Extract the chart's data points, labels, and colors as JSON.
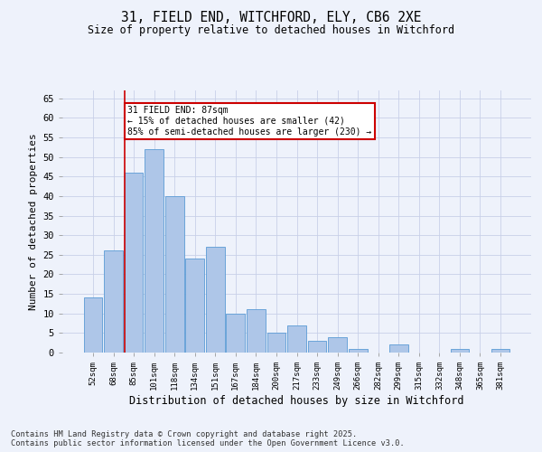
{
  "title1": "31, FIELD END, WITCHFORD, ELY, CB6 2XE",
  "title2": "Size of property relative to detached houses in Witchford",
  "xlabel": "Distribution of detached houses by size in Witchford",
  "ylabel": "Number of detached properties",
  "categories": [
    "52sqm",
    "68sqm",
    "85sqm",
    "101sqm",
    "118sqm",
    "134sqm",
    "151sqm",
    "167sqm",
    "184sqm",
    "200sqm",
    "217sqm",
    "233sqm",
    "249sqm",
    "266sqm",
    "282sqm",
    "299sqm",
    "315sqm",
    "332sqm",
    "348sqm",
    "365sqm",
    "381sqm"
  ],
  "values": [
    14,
    26,
    46,
    52,
    40,
    24,
    27,
    10,
    11,
    5,
    7,
    3,
    4,
    1,
    0,
    2,
    0,
    0,
    1,
    0,
    1
  ],
  "bar_color": "#aec6e8",
  "bar_edge_color": "#5b9bd5",
  "highlight_index": 2,
  "highlight_line_color": "#cc0000",
  "ylim": [
    0,
    67
  ],
  "yticks": [
    0,
    5,
    10,
    15,
    20,
    25,
    30,
    35,
    40,
    45,
    50,
    55,
    60,
    65
  ],
  "annotation_title": "31 FIELD END: 87sqm",
  "annotation_line1": "← 15% of detached houses are smaller (42)",
  "annotation_line2": "85% of semi-detached houses are larger (230) →",
  "annotation_box_color": "#ffffff",
  "annotation_box_edge_color": "#cc0000",
  "footer_line1": "Contains HM Land Registry data © Crown copyright and database right 2025.",
  "footer_line2": "Contains public sector information licensed under the Open Government Licence v3.0.",
  "bg_color": "#eef2fb",
  "grid_color": "#c8d0e8"
}
